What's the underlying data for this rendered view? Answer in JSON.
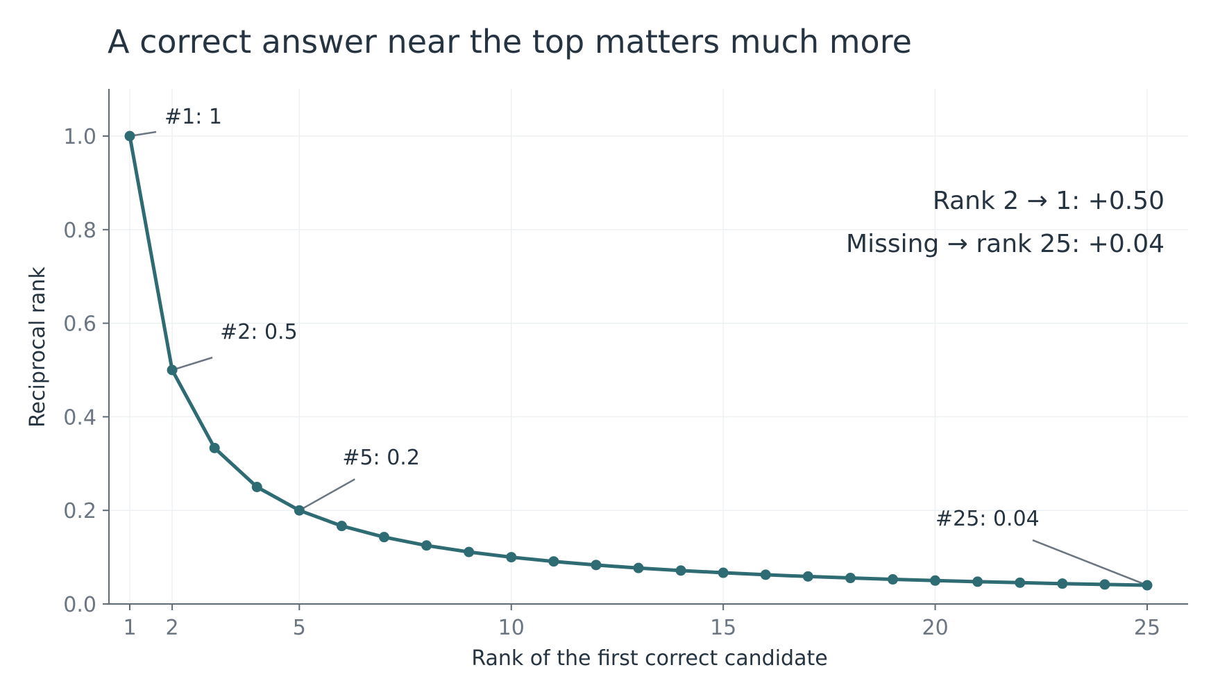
{
  "chart_data": {
    "type": "line",
    "title": "A correct answer near the top matters much more",
    "xlabel": "Rank of the first correct candidate",
    "ylabel": "Reciprocal rank",
    "xlim": [
      0.5,
      26
    ],
    "ylim": [
      0,
      1.1
    ],
    "xticks": [
      1,
      2,
      5,
      10,
      15,
      20,
      25
    ],
    "xtick_labels": [
      "1",
      "2",
      "5",
      "10",
      "15",
      "20",
      "25"
    ],
    "yticks": [
      0.0,
      0.2,
      0.4,
      0.6,
      0.8,
      1.0
    ],
    "ytick_labels": [
      "0.0",
      "0.2",
      "0.4",
      "0.6",
      "0.8",
      "1.0"
    ],
    "grid": true,
    "x": [
      1,
      2,
      3,
      4,
      5,
      6,
      7,
      8,
      9,
      10,
      11,
      12,
      13,
      14,
      15,
      16,
      17,
      18,
      19,
      20,
      21,
      22,
      23,
      24,
      25
    ],
    "series": [
      {
        "color": "#2e6b72",
        "values": [
          1.0,
          0.5,
          0.3333,
          0.25,
          0.2,
          0.1667,
          0.1429,
          0.125,
          0.1111,
          0.1,
          0.0909,
          0.0833,
          0.0769,
          0.0714,
          0.0667,
          0.0625,
          0.0588,
          0.0556,
          0.0526,
          0.05,
          0.0476,
          0.0455,
          0.0435,
          0.0417,
          0.04
        ]
      }
    ],
    "annotations": [
      {
        "x": 1,
        "y": 1.0,
        "text": "#1: 1"
      },
      {
        "x": 2,
        "y": 0.5,
        "text": "#2: 0.5"
      },
      {
        "x": 5,
        "y": 0.2,
        "text": "#5: 0.2"
      },
      {
        "x": 25,
        "y": 0.04,
        "text": "#25: 0.04"
      }
    ],
    "notes": [
      "Rank 2 → 1: +0.50",
      "Missing → rank 25: +0.04"
    ]
  }
}
